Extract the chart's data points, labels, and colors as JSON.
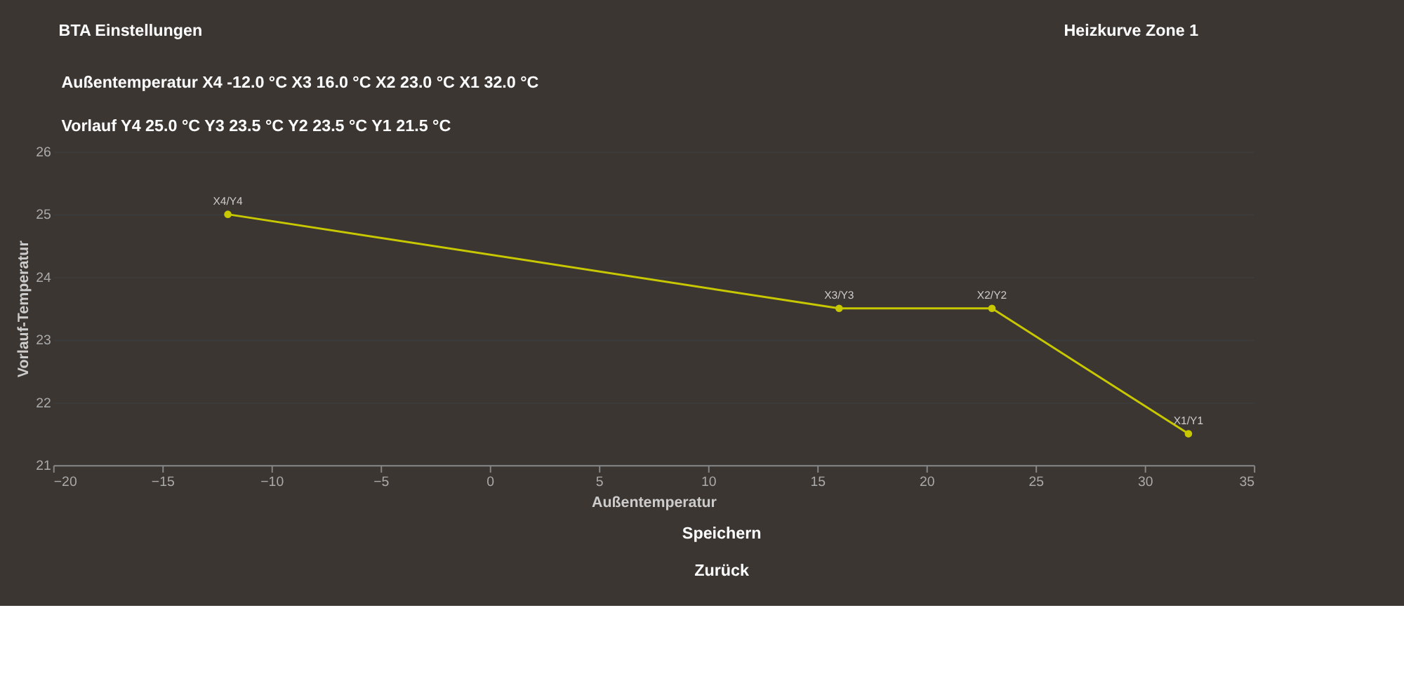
{
  "chart_data": {
    "type": "line",
    "title": "Heizkurve Zone 1",
    "xlabel": "Außentemperatur",
    "ylabel": "Vorlauf-Temperatur",
    "x": [
      -12.0,
      16.0,
      23.0,
      32.0
    ],
    "series": [
      {
        "color": "#c8c800",
        "values": [
          25.0,
          23.5,
          23.5,
          21.5
        ]
      }
    ],
    "xlim": [
      -20,
      35
    ],
    "xticks": [
      -20,
      -15,
      -10,
      -5,
      0,
      5,
      10,
      15,
      20,
      25,
      30,
      35
    ],
    "ylim": [
      21,
      26
    ],
    "yticks": [
      21,
      22,
      23,
      24,
      25,
      26
    ],
    "grid": "y",
    "marker": "circle",
    "line_style": "solid",
    "legend": false,
    "annotations": [
      "BTA Einstellungen",
      "Außentemperatur     X4 -12.0 °C     X3 16.0 °C     X2 23.0 °C     X1 32.0 °C",
      "Vorlauf     Y4 25.0 °C     Y3 23.5 °C     Y2 23.5 °C     Y1 21.5 °C",
      "Speichern",
      "Zurück",
      {
        "text": "X4/Y4",
        "x": -12.0,
        "y": 25.0
      },
      {
        "text": "X3/Y3",
        "x": 16.0,
        "y": 23.5
      },
      {
        "text": "X2/Y2",
        "x": 23.0,
        "y": 23.5
      },
      {
        "text": "X1/Y1",
        "x": 32.0,
        "y": 21.5
      }
    ]
  }
}
